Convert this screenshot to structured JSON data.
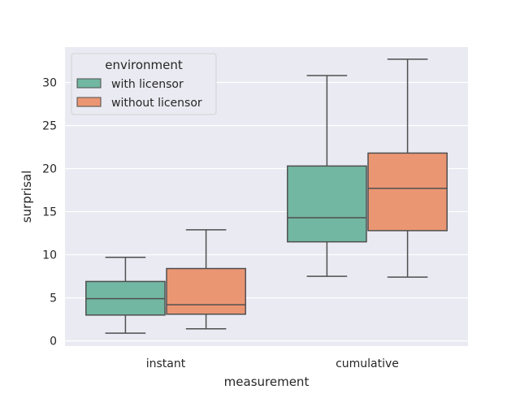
{
  "chart_data": {
    "type": "box",
    "title": "",
    "xlabel": "measurement",
    "ylabel": "surprisal",
    "categories": [
      "instant",
      "cumulative"
    ],
    "ylim": [
      -0.6,
      34.1
    ],
    "yticks": [
      0,
      5,
      10,
      15,
      20,
      25,
      30
    ],
    "grid": true,
    "legend": {
      "title": "environment",
      "placement": "top-left",
      "entries": [
        "with licensor",
        "without licensor"
      ]
    },
    "series": [
      {
        "name": "with licensor",
        "color": "#72b7a1",
        "boxes": [
          {
            "whisker_low": 0.9,
            "q1": 3.0,
            "median": 4.9,
            "q3": 6.9,
            "whisker_high": 9.7
          },
          {
            "whisker_low": 7.5,
            "q1": 11.5,
            "median": 14.3,
            "q3": 20.3,
            "whisker_high": 30.8
          }
        ]
      },
      {
        "name": "without licensor",
        "color": "#eb9673",
        "boxes": [
          {
            "whisker_low": 1.4,
            "q1": 3.1,
            "median": 4.2,
            "q3": 8.4,
            "whisker_high": 12.9
          },
          {
            "whisker_low": 7.4,
            "q1": 12.8,
            "median": 17.7,
            "q3": 21.8,
            "whisker_high": 32.7
          }
        ]
      }
    ]
  }
}
